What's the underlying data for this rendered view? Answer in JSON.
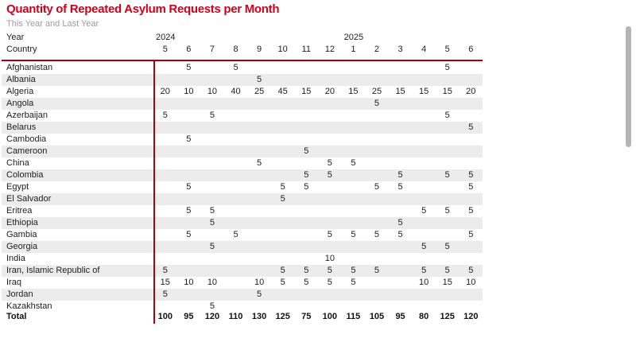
{
  "title": "Quantity of Repeated Asylum Requests per Month",
  "subtitle": "This Year and Last Year",
  "header": {
    "year_label": "Year",
    "country_label": "Country",
    "year_groups": [
      {
        "year": "2024",
        "months_span": 8
      },
      {
        "year": "2025",
        "months_span": 6
      }
    ],
    "months": [
      "5",
      "6",
      "7",
      "8",
      "9",
      "10",
      "11",
      "12",
      "1",
      "2",
      "3",
      "4",
      "5",
      "6"
    ]
  },
  "table": {
    "rows": [
      {
        "country": "Afghanistan",
        "values": [
          "",
          "5",
          "",
          "5",
          "",
          "",
          "",
          "",
          "",
          "",
          "",
          "",
          "5",
          ""
        ]
      },
      {
        "country": "Albania",
        "values": [
          "",
          "",
          "",
          "",
          "5",
          "",
          "",
          "",
          "",
          "",
          "",
          "",
          "",
          ""
        ]
      },
      {
        "country": "Algeria",
        "values": [
          "20",
          "10",
          "10",
          "40",
          "25",
          "45",
          "15",
          "20",
          "15",
          "25",
          "15",
          "15",
          "15",
          "20"
        ]
      },
      {
        "country": "Angola",
        "values": [
          "",
          "",
          "",
          "",
          "",
          "",
          "",
          "",
          "",
          "5",
          "",
          "",
          "",
          ""
        ]
      },
      {
        "country": "Azerbaijan",
        "values": [
          "5",
          "",
          "5",
          "",
          "",
          "",
          "",
          "",
          "",
          "",
          "",
          "",
          "5",
          ""
        ]
      },
      {
        "country": "Belarus",
        "values": [
          "",
          "",
          "",
          "",
          "",
          "",
          "",
          "",
          "",
          "",
          "",
          "",
          "",
          "5"
        ]
      },
      {
        "country": "Cambodia",
        "values": [
          "",
          "5",
          "",
          "",
          "",
          "",
          "",
          "",
          "",
          "",
          "",
          "",
          "",
          ""
        ]
      },
      {
        "country": "Cameroon",
        "values": [
          "",
          "",
          "",
          "",
          "",
          "",
          "5",
          "",
          "",
          "",
          "",
          "",
          "",
          ""
        ]
      },
      {
        "country": "China",
        "values": [
          "",
          "",
          "",
          "",
          "5",
          "",
          "",
          "5",
          "5",
          "",
          "",
          "",
          "",
          ""
        ]
      },
      {
        "country": "Colombia",
        "values": [
          "",
          "",
          "",
          "",
          "",
          "",
          "5",
          "5",
          "",
          "",
          "5",
          "",
          "5",
          "5"
        ]
      },
      {
        "country": "Egypt",
        "values": [
          "",
          "5",
          "",
          "",
          "",
          "5",
          "5",
          "",
          "",
          "5",
          "5",
          "",
          "",
          "5"
        ]
      },
      {
        "country": "El Salvador",
        "values": [
          "",
          "",
          "",
          "",
          "",
          "5",
          "",
          "",
          "",
          "",
          "",
          "",
          "",
          ""
        ]
      },
      {
        "country": "Eritrea",
        "values": [
          "",
          "5",
          "5",
          "",
          "",
          "",
          "",
          "",
          "",
          "",
          "",
          "5",
          "5",
          "5"
        ]
      },
      {
        "country": "Ethiopia",
        "values": [
          "",
          "",
          "5",
          "",
          "",
          "",
          "",
          "",
          "",
          "",
          "5",
          "",
          "",
          ""
        ]
      },
      {
        "country": "Gambia",
        "values": [
          "",
          "5",
          "",
          "5",
          "",
          "",
          "",
          "5",
          "5",
          "5",
          "5",
          "",
          "",
          "5"
        ]
      },
      {
        "country": "Georgia",
        "values": [
          "",
          "",
          "5",
          "",
          "",
          "",
          "",
          "",
          "",
          "",
          "",
          "5",
          "5",
          ""
        ]
      },
      {
        "country": "India",
        "values": [
          "",
          "",
          "",
          "",
          "",
          "",
          "",
          "10",
          "",
          "",
          "",
          "",
          "",
          ""
        ]
      },
      {
        "country": "Iran, Islamic Republic of",
        "values": [
          "5",
          "",
          "",
          "",
          "",
          "5",
          "5",
          "5",
          "5",
          "5",
          "",
          "5",
          "5",
          "5"
        ]
      },
      {
        "country": "Iraq",
        "values": [
          "15",
          "10",
          "10",
          "",
          "10",
          "5",
          "5",
          "5",
          "5",
          "",
          "",
          "10",
          "15",
          "10"
        ]
      },
      {
        "country": "Jordan",
        "values": [
          "5",
          "",
          "",
          "",
          "5",
          "",
          "",
          "",
          "",
          "",
          "",
          "",
          "",
          ""
        ]
      },
      {
        "country": "Kazakhstan",
        "values": [
          "",
          "",
          "5",
          "",
          "",
          "",
          "",
          "",
          "",
          "",
          "",
          "",
          "",
          ""
        ]
      }
    ],
    "total": {
      "label": "Total",
      "values": [
        "100",
        "95",
        "120",
        "110",
        "130",
        "125",
        "75",
        "100",
        "115",
        "105",
        "95",
        "80",
        "125",
        "120"
      ]
    }
  },
  "colors": {
    "title_red": "#d0021b",
    "rule_red": "#aa0013",
    "alt_row_gray": "#ececec",
    "subtitle_gray": "#9b9b9b",
    "scrollbar_gray": "#b4b4b4"
  }
}
